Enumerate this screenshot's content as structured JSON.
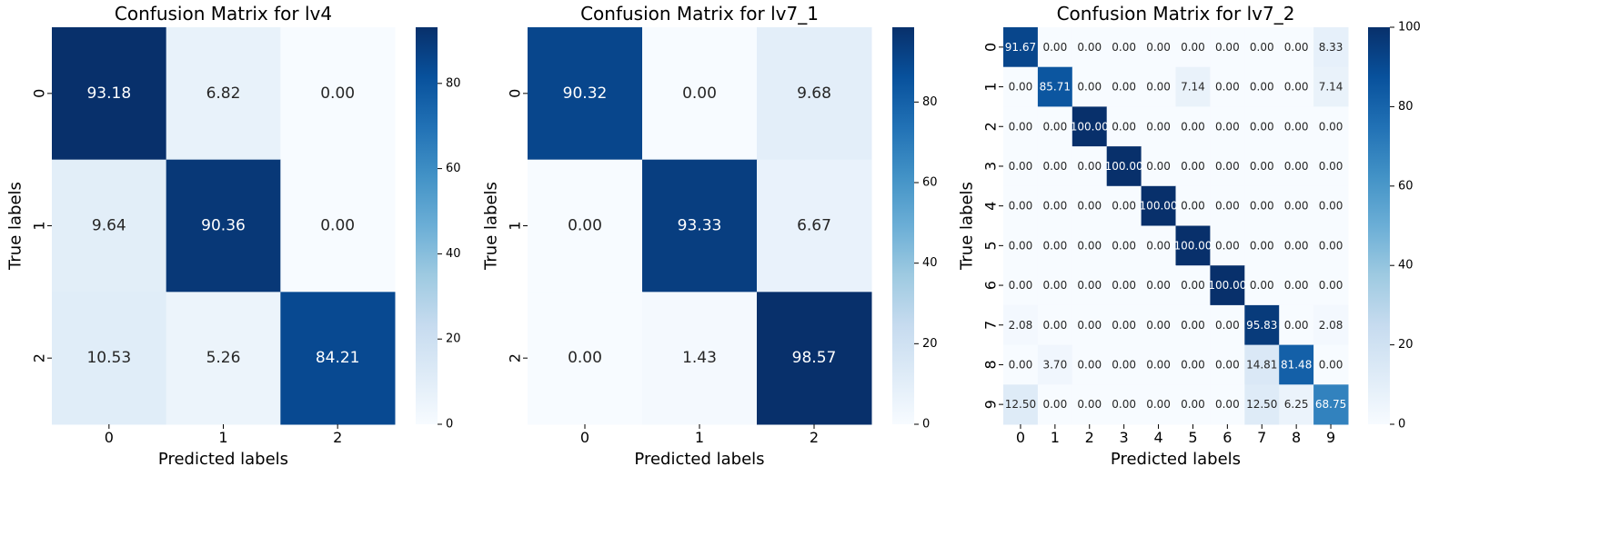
{
  "chart_data": [
    {
      "type": "heatmap",
      "title": "Confusion Matrix for lv4",
      "xlabel": "Predicted labels",
      "ylabel": "True labels",
      "x_categories": [
        "0",
        "1",
        "2"
      ],
      "y_categories": [
        "0",
        "1",
        "2"
      ],
      "values": [
        [
          93.18,
          6.82,
          0.0
        ],
        [
          9.64,
          90.36,
          0.0
        ],
        [
          10.53,
          5.26,
          84.21
        ]
      ],
      "colormap": "Blues",
      "vmin": 0,
      "vmax": 93.18,
      "colorbar_ticks": [
        "0",
        "20",
        "40",
        "60",
        "80"
      ]
    },
    {
      "type": "heatmap",
      "title": "Confusion Matrix for lv7_1",
      "xlabel": "Predicted labels",
      "ylabel": "True labels",
      "x_categories": [
        "0",
        "1",
        "2"
      ],
      "y_categories": [
        "0",
        "1",
        "2"
      ],
      "values": [
        [
          90.32,
          0.0,
          9.68
        ],
        [
          0.0,
          93.33,
          6.67
        ],
        [
          0.0,
          1.43,
          98.57
        ]
      ],
      "colormap": "Blues",
      "vmin": 0,
      "vmax": 98.57,
      "colorbar_ticks": [
        "0",
        "20",
        "40",
        "60",
        "80"
      ]
    },
    {
      "type": "heatmap",
      "title": "Confusion Matrix for lv7_2",
      "xlabel": "Predicted labels",
      "ylabel": "True labels",
      "x_categories": [
        "0",
        "1",
        "2",
        "3",
        "4",
        "5",
        "6",
        "7",
        "8",
        "9"
      ],
      "y_categories": [
        "0",
        "1",
        "2",
        "3",
        "4",
        "5",
        "6",
        "7",
        "8",
        "9"
      ],
      "values": [
        [
          91.67,
          0.0,
          0.0,
          0.0,
          0.0,
          0.0,
          0.0,
          0.0,
          0.0,
          8.33
        ],
        [
          0.0,
          85.71,
          0.0,
          0.0,
          0.0,
          7.14,
          0.0,
          0.0,
          0.0,
          7.14
        ],
        [
          0.0,
          0.0,
          100.0,
          0.0,
          0.0,
          0.0,
          0.0,
          0.0,
          0.0,
          0.0
        ],
        [
          0.0,
          0.0,
          0.0,
          100.0,
          0.0,
          0.0,
          0.0,
          0.0,
          0.0,
          0.0
        ],
        [
          0.0,
          0.0,
          0.0,
          0.0,
          100.0,
          0.0,
          0.0,
          0.0,
          0.0,
          0.0
        ],
        [
          0.0,
          0.0,
          0.0,
          0.0,
          0.0,
          100.0,
          0.0,
          0.0,
          0.0,
          0.0
        ],
        [
          0.0,
          0.0,
          0.0,
          0.0,
          0.0,
          0.0,
          100.0,
          0.0,
          0.0,
          0.0
        ],
        [
          2.08,
          0.0,
          0.0,
          0.0,
          0.0,
          0.0,
          0.0,
          95.83,
          0.0,
          2.08
        ],
        [
          0.0,
          3.7,
          0.0,
          0.0,
          0.0,
          0.0,
          0.0,
          14.81,
          81.48,
          0.0
        ],
        [
          12.5,
          0.0,
          0.0,
          0.0,
          0.0,
          0.0,
          0.0,
          12.5,
          6.25,
          68.75
        ]
      ],
      "colormap": "Blues",
      "vmin": 0,
      "vmax": 100,
      "colorbar_ticks": [
        "0",
        "20",
        "40",
        "60",
        "80",
        "100"
      ]
    }
  ]
}
